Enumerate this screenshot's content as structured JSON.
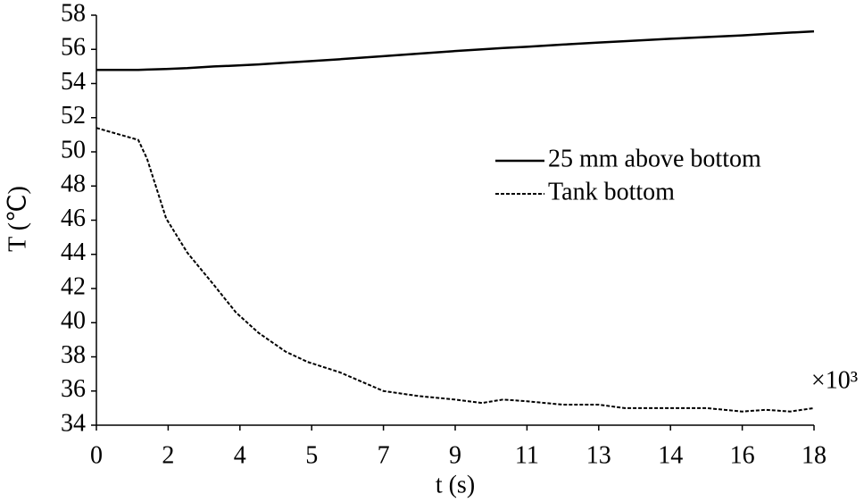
{
  "chart_data": {
    "type": "line",
    "x_label": "t (s)",
    "y_label": "T (℃)",
    "annotations": [
      "×10³"
    ],
    "x": [
      0,
      1.05,
      1.27,
      1.75,
      2.28,
      2.95,
      3.5,
      4.07,
      4.75,
      5.3,
      6.1,
      7.2,
      8.1,
      9.0,
      9.67,
      10.2,
      10.8,
      11.7,
      12.6,
      13.25,
      14.4,
      15.3,
      16.2,
      16.8,
      17.4,
      18
    ],
    "series": [
      {
        "name": "25 mm above bottom",
        "color": "#000000",
        "dash": "solid",
        "values": [
          54.8,
          54.8,
          54.82,
          54.85,
          54.9,
          55.0,
          55.05,
          55.12,
          55.22,
          55.3,
          55.42,
          55.6,
          55.75,
          55.9,
          56.0,
          56.08,
          56.15,
          56.28,
          56.4,
          56.48,
          56.62,
          56.72,
          56.82,
          56.9,
          56.98,
          57.05
        ]
      },
      {
        "name": "Tank bottom",
        "color": "#000000",
        "dash": "dashed",
        "values": [
          51.4,
          50.7,
          49.6,
          46.1,
          44.1,
          42.2,
          40.6,
          39.4,
          38.3,
          37.7,
          37.1,
          36.0,
          35.7,
          35.5,
          35.3,
          35.5,
          35.4,
          35.2,
          35.2,
          35.0,
          35.0,
          35.0,
          34.8,
          34.9,
          34.8,
          35.0
        ]
      }
    ],
    "xlim": [
      0,
      18
    ],
    "xticks": [
      0,
      {
        "value": 1.8,
        "label": "2"
      },
      {
        "value": 3.6,
        "label": "4"
      },
      {
        "value": 5.4,
        "label": "5"
      },
      {
        "value": 7.2,
        "label": "7"
      },
      9,
      {
        "value": 10.8,
        "label": "11"
      },
      {
        "value": 12.6,
        "label": "13"
      },
      {
        "value": 14.4,
        "label": "14"
      },
      {
        "value": 16.2,
        "label": "16"
      },
      18
    ],
    "ylim": [
      34,
      58
    ],
    "yticks": [
      34,
      36,
      38,
      40,
      42,
      44,
      46,
      48,
      50,
      52,
      54,
      56,
      58
    ],
    "grid": false,
    "legend": "right"
  }
}
